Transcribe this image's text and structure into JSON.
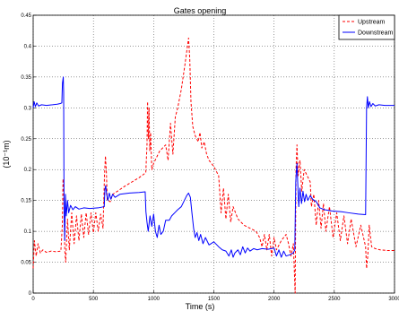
{
  "chart_data": {
    "type": "line",
    "title": "Gates opening",
    "xlabel": "Time (s)",
    "ylabel": "(10⁻¹m)",
    "xlim": [
      0,
      3000
    ],
    "ylim": [
      0,
      0.45
    ],
    "xticks": [
      0,
      500,
      1000,
      1500,
      2000,
      2500,
      3000
    ],
    "xtick_labels": [
      "0",
      "500",
      "1000",
      "1500",
      "2000",
      "2500",
      "3000"
    ],
    "yticks": [
      0,
      0.05,
      0.1,
      0.15,
      0.2,
      0.25,
      0.3,
      0.35,
      0.4,
      0.45
    ],
    "ytick_labels": [
      "0",
      "0.05",
      "0.1",
      "0.15",
      "0.2",
      "0.25",
      "0.3",
      "0.35",
      "0.4",
      "0.45"
    ],
    "grid": true,
    "legend_position": "top-right",
    "series": [
      {
        "name": "Upstream",
        "color": "#ff0000",
        "style": "dashed",
        "points": [
          [
            0,
            0.04
          ],
          [
            10,
            0.085
          ],
          [
            25,
            0.06
          ],
          [
            40,
            0.08
          ],
          [
            60,
            0.065
          ],
          [
            80,
            0.07
          ],
          [
            110,
            0.066
          ],
          [
            150,
            0.068
          ],
          [
            190,
            0.067
          ],
          [
            230,
            0.068
          ],
          [
            242,
            0.11
          ],
          [
            248,
            0.185
          ],
          [
            255,
            0.16
          ],
          [
            262,
            0.07
          ],
          [
            270,
            0.05
          ],
          [
            285,
            0.12
          ],
          [
            300,
            0.07
          ],
          [
            320,
            0.13
          ],
          [
            340,
            0.08
          ],
          [
            360,
            0.125
          ],
          [
            380,
            0.085
          ],
          [
            400,
            0.128
          ],
          [
            420,
            0.09
          ],
          [
            440,
            0.13
          ],
          [
            460,
            0.095
          ],
          [
            480,
            0.13
          ],
          [
            500,
            0.098
          ],
          [
            520,
            0.13
          ],
          [
            540,
            0.1
          ],
          [
            560,
            0.128
          ],
          [
            580,
            0.105
          ],
          [
            592,
            0.19
          ],
          [
            600,
            0.222
          ],
          [
            608,
            0.195
          ],
          [
            615,
            0.15
          ],
          [
            640,
            0.148
          ],
          [
            660,
            0.16
          ],
          [
            700,
            0.165
          ],
          [
            760,
            0.173
          ],
          [
            820,
            0.18
          ],
          [
            880,
            0.187
          ],
          [
            935,
            0.195
          ],
          [
            945,
            0.24
          ],
          [
            950,
            0.31
          ],
          [
            956,
            0.25
          ],
          [
            962,
            0.3
          ],
          [
            968,
            0.23
          ],
          [
            975,
            0.26
          ],
          [
            985,
            0.2
          ],
          [
            1000,
            0.21
          ],
          [
            1050,
            0.23
          ],
          [
            1100,
            0.24
          ],
          [
            1120,
            0.215
          ],
          [
            1140,
            0.275
          ],
          [
            1160,
            0.225
          ],
          [
            1180,
            0.285
          ],
          [
            1200,
            0.3
          ],
          [
            1230,
            0.33
          ],
          [
            1260,
            0.37
          ],
          [
            1290,
            0.413
          ],
          [
            1300,
            0.38
          ],
          [
            1310,
            0.31
          ],
          [
            1325,
            0.27
          ],
          [
            1345,
            0.255
          ],
          [
            1370,
            0.245
          ],
          [
            1385,
            0.26
          ],
          [
            1400,
            0.235
          ],
          [
            1420,
            0.245
          ],
          [
            1440,
            0.225
          ],
          [
            1460,
            0.215
          ],
          [
            1500,
            0.205
          ],
          [
            1540,
            0.19
          ],
          [
            1560,
            0.13
          ],
          [
            1580,
            0.17
          ],
          [
            1600,
            0.12
          ],
          [
            1620,
            0.16
          ],
          [
            1640,
            0.115
          ],
          [
            1660,
            0.14
          ],
          [
            1700,
            0.12
          ],
          [
            1750,
            0.11
          ],
          [
            1800,
            0.105
          ],
          [
            1850,
            0.1
          ],
          [
            1880,
            0.09
          ],
          [
            1900,
            0.075
          ],
          [
            1920,
            0.095
          ],
          [
            1940,
            0.07
          ],
          [
            1960,
            0.095
          ],
          [
            1980,
            0.06
          ],
          [
            2000,
            0.09
          ],
          [
            2020,
            0.07
          ],
          [
            2060,
            0.085
          ],
          [
            2100,
            0.095
          ],
          [
            2120,
            0.08
          ],
          [
            2140,
            0.06
          ],
          [
            2160,
            0.08
          ],
          [
            2175,
            0.0
          ],
          [
            2182,
            0.2
          ],
          [
            2190,
            0.24
          ],
          [
            2200,
            0.19
          ],
          [
            2215,
            0.215
          ],
          [
            2230,
            0.165
          ],
          [
            2250,
            0.2
          ],
          [
            2275,
            0.19
          ],
          [
            2300,
            0.18
          ],
          [
            2310,
            0.14
          ],
          [
            2330,
            0.16
          ],
          [
            2350,
            0.11
          ],
          [
            2370,
            0.15
          ],
          [
            2390,
            0.105
          ],
          [
            2410,
            0.145
          ],
          [
            2430,
            0.1
          ],
          [
            2460,
            0.14
          ],
          [
            2490,
            0.09
          ],
          [
            2520,
            0.13
          ],
          [
            2550,
            0.085
          ],
          [
            2580,
            0.125
          ],
          [
            2610,
            0.08
          ],
          [
            2640,
            0.12
          ],
          [
            2680,
            0.075
          ],
          [
            2720,
            0.11
          ],
          [
            2760,
            0.075
          ],
          [
            2768,
            0.04
          ],
          [
            2778,
            0.06
          ],
          [
            2790,
            0.11
          ],
          [
            2810,
            0.075
          ],
          [
            2840,
            0.072
          ],
          [
            2880,
            0.07
          ],
          [
            2940,
            0.069
          ],
          [
            3000,
            0.069
          ]
        ]
      },
      {
        "name": "Downstream",
        "color": "#0000ff",
        "style": "solid",
        "points": [
          [
            0,
            0.3
          ],
          [
            8,
            0.31
          ],
          [
            18,
            0.302
          ],
          [
            30,
            0.308
          ],
          [
            45,
            0.303
          ],
          [
            70,
            0.305
          ],
          [
            110,
            0.304
          ],
          [
            160,
            0.305
          ],
          [
            200,
            0.306
          ],
          [
            225,
            0.307
          ],
          [
            238,
            0.308
          ],
          [
            243,
            0.34
          ],
          [
            250,
            0.35
          ],
          [
            253,
            0.325
          ],
          [
            256,
            0.15
          ],
          [
            262,
            0.085
          ],
          [
            268,
            0.16
          ],
          [
            275,
            0.125
          ],
          [
            285,
            0.15
          ],
          [
            295,
            0.13
          ],
          [
            310,
            0.142
          ],
          [
            330,
            0.135
          ],
          [
            350,
            0.14
          ],
          [
            380,
            0.136
          ],
          [
            420,
            0.138
          ],
          [
            470,
            0.137
          ],
          [
            540,
            0.138
          ],
          [
            590,
            0.14
          ],
          [
            596,
            0.168
          ],
          [
            602,
            0.174
          ],
          [
            610,
            0.16
          ],
          [
            620,
            0.15
          ],
          [
            632,
            0.162
          ],
          [
            645,
            0.152
          ],
          [
            660,
            0.16
          ],
          [
            680,
            0.155
          ],
          [
            720,
            0.16
          ],
          [
            800,
            0.162
          ],
          [
            880,
            0.163
          ],
          [
            930,
            0.164
          ],
          [
            936,
            0.132
          ],
          [
            945,
            0.115
          ],
          [
            955,
            0.1
          ],
          [
            970,
            0.125
          ],
          [
            985,
            0.108
          ],
          [
            1000,
            0.128
          ],
          [
            1015,
            0.1
          ],
          [
            1030,
            0.09
          ],
          [
            1045,
            0.11
          ],
          [
            1060,
            0.095
          ],
          [
            1080,
            0.1
          ],
          [
            1100,
            0.118
          ],
          [
            1130,
            0.118
          ],
          [
            1150,
            0.125
          ],
          [
            1175,
            0.13
          ],
          [
            1200,
            0.135
          ],
          [
            1230,
            0.14
          ],
          [
            1255,
            0.15
          ],
          [
            1275,
            0.158
          ],
          [
            1290,
            0.162
          ],
          [
            1305,
            0.155
          ],
          [
            1318,
            0.13
          ],
          [
            1332,
            0.105
          ],
          [
            1345,
            0.09
          ],
          [
            1360,
            0.098
          ],
          [
            1375,
            0.085
          ],
          [
            1390,
            0.095
          ],
          [
            1410,
            0.08
          ],
          [
            1430,
            0.09
          ],
          [
            1460,
            0.078
          ],
          [
            1500,
            0.083
          ],
          [
            1540,
            0.075
          ],
          [
            1570,
            0.07
          ],
          [
            1600,
            0.068
          ],
          [
            1625,
            0.06
          ],
          [
            1645,
            0.07
          ],
          [
            1660,
            0.058
          ],
          [
            1675,
            0.065
          ],
          [
            1700,
            0.07
          ],
          [
            1720,
            0.062
          ],
          [
            1740,
            0.075
          ],
          [
            1760,
            0.065
          ],
          [
            1780,
            0.073
          ],
          [
            1800,
            0.068
          ],
          [
            1830,
            0.072
          ],
          [
            1860,
            0.07
          ],
          [
            1900,
            0.072
          ],
          [
            1950,
            0.071
          ],
          [
            2000,
            0.073
          ],
          [
            2020,
            0.06
          ],
          [
            2040,
            0.07
          ],
          [
            2060,
            0.058
          ],
          [
            2080,
            0.068
          ],
          [
            2100,
            0.06
          ],
          [
            2130,
            0.062
          ],
          [
            2160,
            0.065
          ],
          [
            2172,
            0.07
          ],
          [
            2180,
            0.18
          ],
          [
            2186,
            0.2
          ],
          [
            2190,
            0.21
          ],
          [
            2195,
            0.185
          ],
          [
            2205,
            0.14
          ],
          [
            2215,
            0.17
          ],
          [
            2228,
            0.145
          ],
          [
            2240,
            0.165
          ],
          [
            2253,
            0.148
          ],
          [
            2266,
            0.16
          ],
          [
            2280,
            0.15
          ],
          [
            2300,
            0.158
          ],
          [
            2320,
            0.152
          ],
          [
            2350,
            0.148
          ],
          [
            2380,
            0.138
          ],
          [
            2420,
            0.135
          ],
          [
            2480,
            0.133
          ],
          [
            2550,
            0.132
          ],
          [
            2620,
            0.13
          ],
          [
            2700,
            0.128
          ],
          [
            2760,
            0.127
          ],
          [
            2768,
            0.3
          ],
          [
            2775,
            0.318
          ],
          [
            2782,
            0.3
          ],
          [
            2792,
            0.31
          ],
          [
            2805,
            0.302
          ],
          [
            2820,
            0.307
          ],
          [
            2840,
            0.303
          ],
          [
            2870,
            0.305
          ],
          [
            2920,
            0.304
          ],
          [
            3000,
            0.304
          ]
        ]
      }
    ]
  }
}
